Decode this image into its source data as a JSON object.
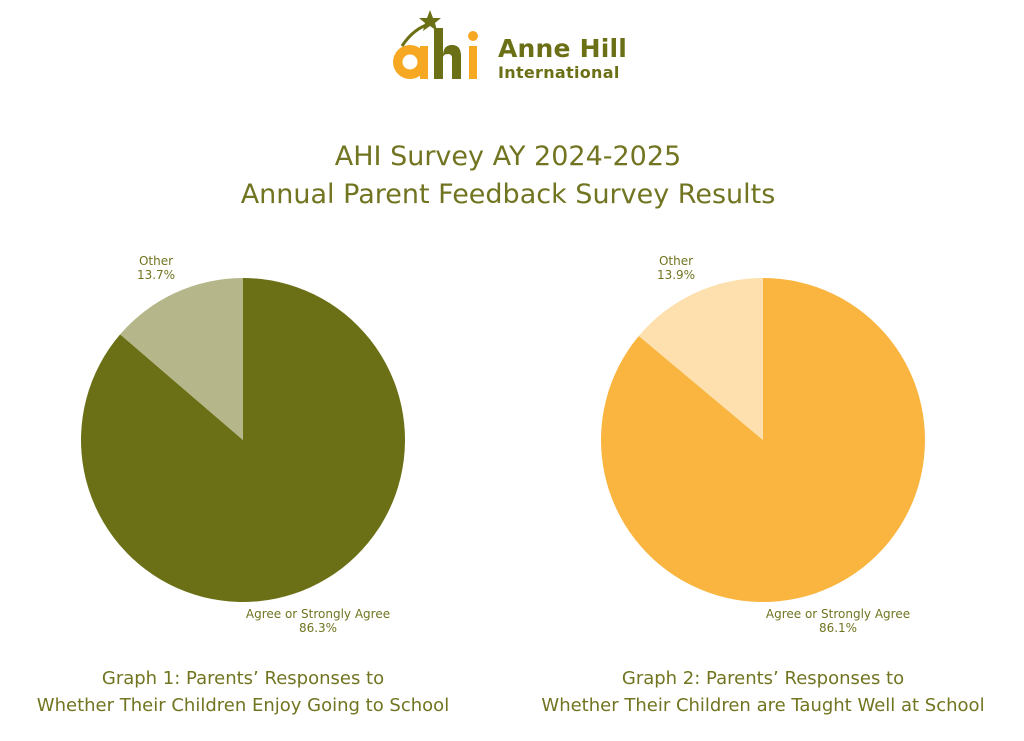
{
  "logo": {
    "mark": "ahi",
    "name_line1": "Anne Hill",
    "name_line2": "International",
    "icon": "star-icon"
  },
  "title": {
    "line1": "AHI Survey AY 2024-2025",
    "line2": "Annual Parent Feedback Survey Results"
  },
  "colors": {
    "olive": "#6b7016",
    "olive_light": "#b5b78a",
    "orange": "#f9b53f",
    "orange_light": "#fde0ad",
    "title_text": "#717420",
    "logo_orange": "#f7a823"
  },
  "chart_data": [
    {
      "type": "pie",
      "slices": [
        {
          "label": "Agree or Strongly Agree",
          "value": 86.3,
          "display": "86.3%"
        },
        {
          "label": "Other",
          "value": 13.7,
          "display": "13.7%"
        }
      ],
      "caption": [
        "Graph 1: Parents’ Responses to",
        "Whether Their Children Enjoy Going to School"
      ]
    },
    {
      "type": "pie",
      "slices": [
        {
          "label": "Agree or Strongly Agree",
          "value": 86.1,
          "display": "86.1%"
        },
        {
          "label": "Other",
          "value": 13.9,
          "display": "13.9%"
        }
      ],
      "caption": [
        "Graph 2: Parents’ Responses to",
        "Whether Their Children are Taught Well at School"
      ]
    }
  ]
}
